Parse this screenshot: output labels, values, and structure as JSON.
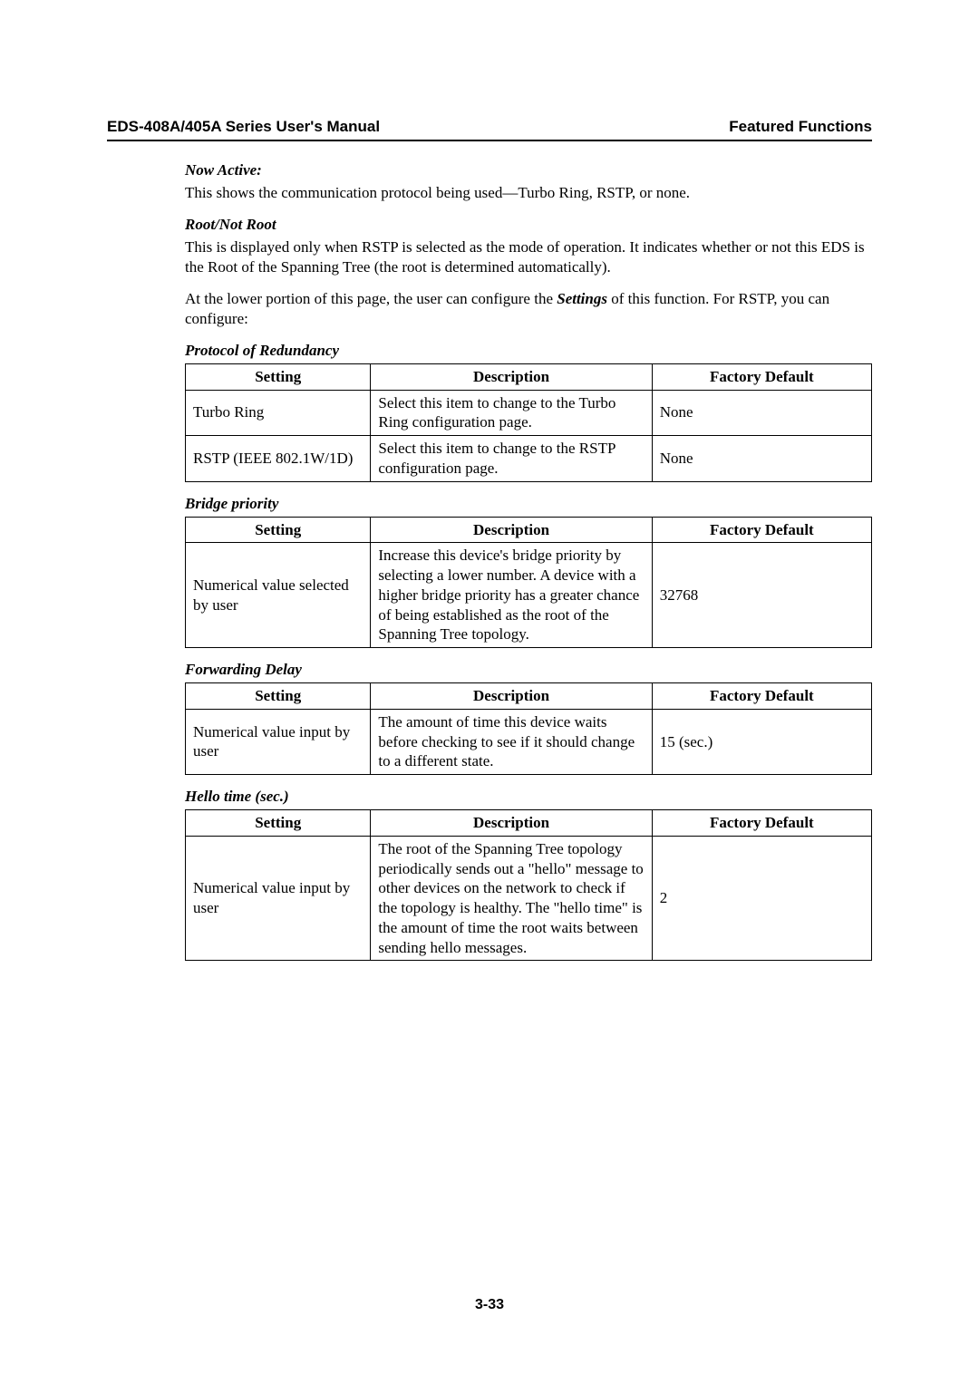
{
  "header": {
    "left": "EDS-408A/405A Series User's Manual",
    "right": "Featured Functions"
  },
  "sections": {
    "nowActive": {
      "title": "Now Active:",
      "text": "This shows the communication protocol being used—Turbo Ring, RSTP, or none."
    },
    "rootNotRoot": {
      "title": "Root/Not Root",
      "para1": "This is displayed only when RSTP is selected as the mode of operation. It indicates whether or not this EDS is the Root of the Spanning Tree (the root is determined automatically).",
      "para2_pre": "At the lower portion of this page, the user can configure the ",
      "para2_bold": "Settings",
      "para2_post": " of this function. For RSTP, you can configure:"
    },
    "protocolRedundancy": {
      "title": "Protocol of Redundancy",
      "headers": {
        "c1": "Setting",
        "c2": "Description",
        "c3": "Factory Default"
      },
      "rows": [
        {
          "setting": "Turbo Ring",
          "desc": "Select this item to change to the Turbo Ring configuration page.",
          "def": "None"
        },
        {
          "setting": "RSTP (IEEE 802.1W/1D)",
          "desc": "Select this item to change to the RSTP configuration page.",
          "def": "None"
        }
      ]
    },
    "bridgePriority": {
      "title": "Bridge priority",
      "headers": {
        "c1": "Setting",
        "c2": "Description",
        "c3": "Factory Default"
      },
      "row": {
        "setting": "Numerical value selected by user",
        "desc": "Increase this device's bridge priority by selecting a lower number. A device with a higher bridge priority has a greater chance of being established as the root of the Spanning Tree topology.",
        "def": "32768"
      }
    },
    "forwardingDelay": {
      "title": "Forwarding Delay",
      "headers": {
        "c1": "Setting",
        "c2": "Description",
        "c3": "Factory Default"
      },
      "row": {
        "setting": "Numerical value input by user",
        "desc": "The amount of time this device waits before checking to see if it should change to a different state.",
        "def": "15 (sec.)"
      }
    },
    "helloTime": {
      "title": "Hello time (sec.)",
      "headers": {
        "c1": "Setting",
        "c2": "Description",
        "c3": "Factory Default"
      },
      "row": {
        "setting": "Numerical value input by user",
        "desc": "The root of the Spanning Tree topology periodically sends out a \"hello\" message to other devices on the network to check if the topology is healthy. The \"hello time\" is the amount of time the root waits between sending hello messages.",
        "def": "2"
      }
    }
  },
  "pageNumber": "3-33"
}
